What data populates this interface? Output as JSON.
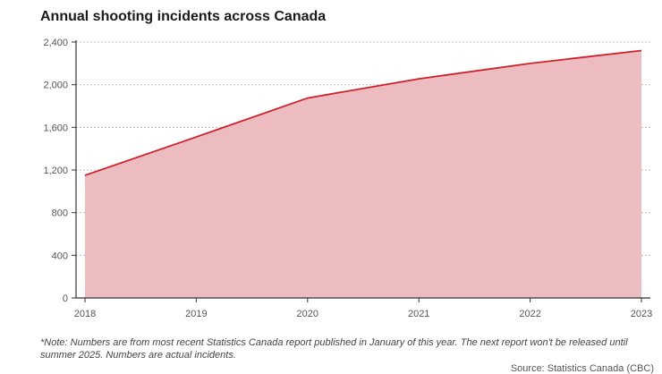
{
  "chart_data": {
    "type": "area",
    "title": "Annual shooting incidents across Canada",
    "categories": [
      "2018",
      "2019",
      "2020",
      "2021",
      "2022",
      "2023"
    ],
    "series": [
      {
        "name": "Shooting incidents",
        "values": [
          1150,
          1510,
          1875,
          2055,
          2200,
          2320
        ]
      }
    ],
    "ylim": [
      0,
      2400
    ],
    "yticks": [
      0,
      400,
      800,
      1200,
      1600,
      2000,
      2400
    ],
    "ytick_labels": [
      "0",
      "400",
      "800",
      "1,200",
      "1,600",
      "2,000",
      "2,400"
    ],
    "xlabel": "",
    "ylabel": "",
    "grid": true,
    "colors": {
      "line": "#d0202a",
      "fill": "#ecbcc1",
      "grid": "#bbbbbb",
      "axis": "#333333"
    }
  },
  "note": "*Note: Numbers are from most recent Statistics Canada report published in January of this year. The next report won't be released until summer 2025. Numbers are actual incidents.",
  "source": "Source: Statistics Canada (CBC)"
}
